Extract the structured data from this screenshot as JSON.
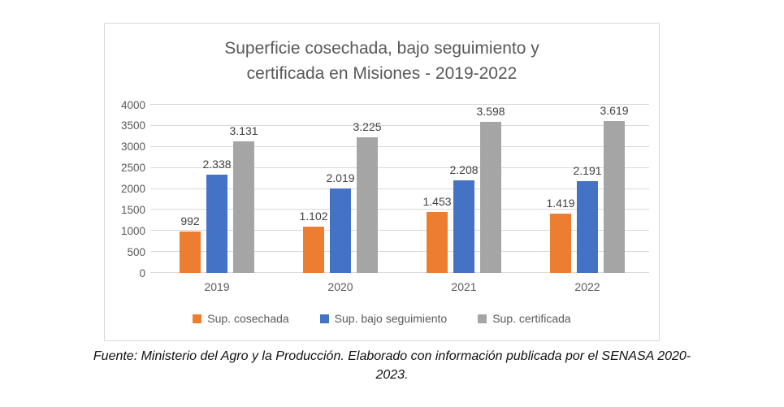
{
  "page": {
    "title_lines": [
      "Superficie cosechada, bajo seguimiento y",
      "certificada en Misiones - 2019-2022"
    ],
    "footer_lines": [
      "Fuente: Ministerio del Agro y la Producción. Elaborado con información publicada por el SENASA 2020-",
      "2023."
    ]
  },
  "chart_data": {
    "type": "bar",
    "title": "Superficie cosechada, bajo seguimiento y certificada en Misiones - 2019-2022",
    "categories": [
      "2019",
      "2020",
      "2021",
      "2022"
    ],
    "series": [
      {
        "name": "Sup. cosechada",
        "color": "#ED7D31",
        "values": [
          992,
          1102,
          1453,
          1419
        ],
        "labels": [
          "992",
          "1.102",
          "1.453",
          "1.419"
        ]
      },
      {
        "name": "Sup. bajo seguimiento",
        "color": "#4472C4",
        "values": [
          2338,
          2019,
          2208,
          2191
        ],
        "labels": [
          "2.338",
          "2.019",
          "2.208",
          "2.191"
        ]
      },
      {
        "name": "Sup. certificada",
        "color": "#A5A5A5",
        "values": [
          3131,
          3225,
          3598,
          3619
        ],
        "labels": [
          "3.131",
          "3.225",
          "3.598",
          "3.619"
        ]
      }
    ],
    "xlabel": "",
    "ylabel": "",
    "ylim": [
      0,
      4000
    ],
    "ytick_step": 500,
    "grid": true,
    "legend_position": "bottom",
    "colors": {
      "grid_line": "#D9D9D9",
      "axis_text": "#595959",
      "title_text": "#595959",
      "bar_label_text": "#404040",
      "card_border": "#D9D9D9"
    }
  }
}
